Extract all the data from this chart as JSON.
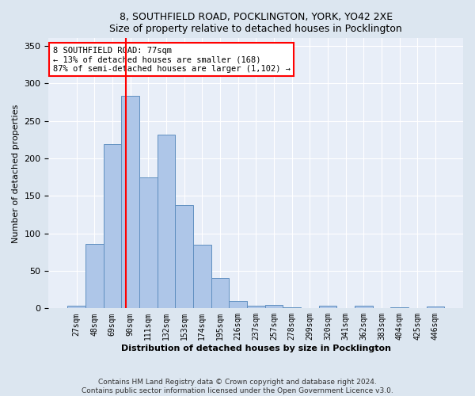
{
  "title1": "8, SOUTHFIELD ROAD, POCKLINGTON, YORK, YO42 2XE",
  "title2": "Size of property relative to detached houses in Pocklington",
  "xlabel": "Distribution of detached houses by size in Pocklington",
  "ylabel": "Number of detached properties",
  "footnote1": "Contains HM Land Registry data © Crown copyright and database right 2024.",
  "footnote2": "Contains public sector information licensed under the Open Government Licence v3.0.",
  "bin_labels": [
    "27sqm",
    "48sqm",
    "69sqm",
    "90sqm",
    "111sqm",
    "132sqm",
    "153sqm",
    "174sqm",
    "195sqm",
    "216sqm",
    "237sqm",
    "257sqm",
    "278sqm",
    "299sqm",
    "320sqm",
    "341sqm",
    "362sqm",
    "383sqm",
    "404sqm",
    "425sqm",
    "446sqm"
  ],
  "bar_heights": [
    3,
    86,
    219,
    283,
    175,
    232,
    138,
    85,
    40,
    10,
    4,
    5,
    1,
    0,
    3,
    0,
    3,
    0,
    1,
    0,
    2
  ],
  "bar_color": "#aec6e8",
  "bar_edge_color": "#5f8fc0",
  "red_line_bin_index": 2,
  "annotation_line1": "8 SOUTHFIELD ROAD: 77sqm",
  "annotation_line2": "← 13% of detached houses are smaller (168)",
  "annotation_line3": "87% of semi-detached houses are larger (1,102) →",
  "ylim": [
    0,
    360
  ],
  "yticks": [
    0,
    50,
    100,
    150,
    200,
    250,
    300,
    350
  ],
  "bg_color": "#dce6f0",
  "plot_bg_color": "#e8eef8"
}
